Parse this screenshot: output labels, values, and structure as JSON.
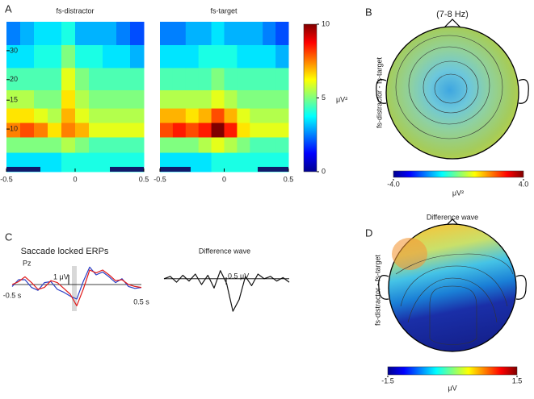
{
  "panel_labels": [
    "A",
    "B",
    "C",
    "D"
  ],
  "chart_data": [
    {
      "type": "heatmap",
      "title": "fs-distractor",
      "xlim": [
        -0.5,
        0.5
      ],
      "xticks": [
        -0.5,
        0,
        0.5
      ],
      "ylim": [
        5.5,
        45
      ],
      "yscale": "log",
      "yticks": [
        10,
        15,
        20,
        30
      ],
      "zlim": [
        0,
        10
      ],
      "x": [
        -0.45,
        -0.35,
        -0.25,
        -0.15,
        -0.05,
        0.05,
        0.15,
        0.25,
        0.35,
        0.45
      ],
      "y": [
        6.5,
        8,
        10,
        12,
        15,
        20,
        28,
        38
      ],
      "z": [
        [
          3.5,
          3.5,
          3.5,
          3.5,
          4,
          4,
          4,
          4,
          4,
          4
        ],
        [
          5,
          5,
          5,
          5,
          5.5,
          5,
          4.5,
          4.5,
          4.5,
          4.5
        ],
        [
          7.5,
          8,
          7.5,
          6.5,
          7.5,
          7,
          6,
          6,
          6,
          6
        ],
        [
          6.5,
          6.5,
          6,
          5.5,
          7,
          6,
          5.5,
          5.5,
          5.5,
          5.5
        ],
        [
          5.5,
          5.5,
          5,
          5,
          6.5,
          5.5,
          5,
          5,
          5,
          5
        ],
        [
          4.5,
          4.5,
          4.5,
          4.5,
          6,
          5,
          4.5,
          4.5,
          4.5,
          4.5
        ],
        [
          3.5,
          3.5,
          4,
          4,
          5,
          4,
          4,
          3.5,
          3.5,
          3
        ],
        [
          2.5,
          3,
          3.5,
          3.5,
          4,
          3,
          3,
          3,
          2.5,
          2
        ]
      ]
    },
    {
      "type": "heatmap",
      "title": "fs-target",
      "xlim": [
        -0.5,
        0.5
      ],
      "xticks": [
        -0.5,
        0,
        0.5
      ],
      "ylim": [
        5.5,
        45
      ],
      "yscale": "log",
      "zlim": [
        0,
        10
      ],
      "x": [
        -0.45,
        -0.35,
        -0.25,
        -0.15,
        -0.05,
        0.05,
        0.15,
        0.25,
        0.35,
        0.45
      ],
      "y": [
        6.5,
        8,
        10,
        12,
        15,
        20,
        28,
        38
      ],
      "z": [
        [
          3.5,
          3.5,
          3.5,
          3.5,
          4,
          4,
          4,
          4,
          4,
          4
        ],
        [
          5,
          5,
          5,
          5.5,
          6,
          5.5,
          5,
          4.5,
          4.5,
          4.5
        ],
        [
          8,
          8.5,
          8,
          8.5,
          10,
          8.5,
          6.5,
          6,
          6,
          6
        ],
        [
          7,
          7,
          6.5,
          7,
          8,
          7,
          6,
          5.5,
          5.5,
          5.5
        ],
        [
          5.5,
          5.5,
          5.5,
          5.5,
          6,
          5.5,
          5,
          5,
          5,
          5
        ],
        [
          4.5,
          4.5,
          4.5,
          4.5,
          5,
          4.5,
          4.5,
          4.5,
          4.5,
          4.5
        ],
        [
          3.5,
          3.5,
          3.5,
          4,
          4,
          4,
          3.5,
          3.5,
          3.5,
          3
        ],
        [
          2.5,
          2.5,
          3,
          3,
          3.5,
          3,
          3,
          3,
          2.5,
          2
        ]
      ]
    },
    {
      "type": "colorbar",
      "zlim": [
        0,
        10
      ],
      "ticks": [
        0,
        5,
        10
      ],
      "label": "μV²"
    },
    {
      "type": "topomap",
      "title": "(7-8 Hz)",
      "ylabel": "fs-distractor  -  fs-target",
      "zlim": [
        -4,
        4
      ],
      "cticks": [
        {
          "value": -4,
          "label": "-4.0"
        },
        {
          "value": 4,
          "label": "4.0"
        }
      ],
      "clabel": "μV²"
    },
    {
      "type": "line",
      "title": "Saccade locked ERPs",
      "annotations": [
        "Pz",
        "1 μV"
      ],
      "xlim": [
        -0.5,
        0.5
      ],
      "ylim": [
        -3,
        3
      ],
      "xticks": [
        {
          "value": -0.5,
          "label": "-0.5 s"
        },
        {
          "value": 0.5,
          "label": "0.5 s"
        }
      ],
      "x": [
        -0.5,
        -0.45,
        -0.4,
        -0.35,
        -0.3,
        -0.25,
        -0.2,
        -0.15,
        -0.1,
        -0.05,
        0,
        0.05,
        0.1,
        0.15,
        0.2,
        0.25,
        0.3,
        0.35,
        0.4,
        0.45,
        0.5
      ],
      "series": [
        {
          "color": "#2b3fc4",
          "values": [
            -0.2,
            0.5,
            0.5,
            -0.3,
            -0.6,
            0.2,
            0.3,
            -0.5,
            -0.8,
            -1.2,
            -1.5,
            0.3,
            1.8,
            1,
            1.3,
            0.8,
            0.2,
            0.6,
            -0.2,
            -0.4,
            -0.3
          ]
        },
        {
          "color": "#e01b1b",
          "values": [
            0,
            0.3,
            0.8,
            0.2,
            -0.5,
            -0.3,
            0.4,
            0.2,
            -0.4,
            -1,
            -2.2,
            -0.5,
            1.5,
            1.2,
            1.5,
            1,
            0.4,
            0.5,
            0,
            -0.2,
            -0.3
          ]
        }
      ]
    },
    {
      "type": "line",
      "title": "Difference wave",
      "annotations": [
        "0.5  μV"
      ],
      "xlim": [
        -0.5,
        0.5
      ],
      "ylim": [
        -1.5,
        1
      ],
      "x": [
        -0.5,
        -0.45,
        -0.4,
        -0.35,
        -0.3,
        -0.25,
        -0.2,
        -0.15,
        -0.1,
        -0.05,
        0,
        0.05,
        0.1,
        0.15,
        0.2,
        0.25,
        0.3,
        0.35,
        0.4,
        0.45,
        0.5
      ],
      "series": [
        {
          "color": "#111111",
          "values": [
            0,
            0.1,
            -0.15,
            0.15,
            -0.1,
            0.2,
            -0.25,
            0.15,
            -0.4,
            0.35,
            -0.2,
            -1.4,
            -0.9,
            0.1,
            -0.3,
            0.2,
            0,
            0.1,
            -0.1,
            0.05,
            -0.15
          ]
        }
      ]
    },
    {
      "type": "topomap",
      "title": "Difference wave",
      "ylabel": "fs-distractor  -  fs-target",
      "zlim": [
        -1.5,
        1.5
      ],
      "cticks": [
        -1.5,
        1.5
      ],
      "clabel": "μV"
    }
  ]
}
